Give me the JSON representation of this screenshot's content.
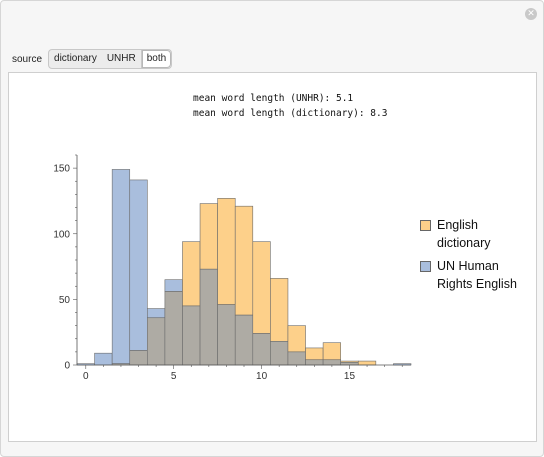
{
  "window": {
    "close_symbol": "✕"
  },
  "controls": {
    "label": "source",
    "options": [
      "dictionary",
      "UNHR",
      "both"
    ],
    "selected": "both"
  },
  "stats": {
    "line1": "mean word length (UNHR): 5.1",
    "line2": "mean word length (dictionary): 8.3"
  },
  "colors": {
    "dictionary": "#fdd08a",
    "unhr": "#a9bedd",
    "overlap": "#aeaba4"
  },
  "legend": {
    "dictionary": "English dictionary",
    "unhr": "UN Human Rights English"
  },
  "chart_data": {
    "type": "bar",
    "bin_width": 1,
    "bin_starts": [
      0,
      1,
      2,
      3,
      4,
      5,
      6,
      7,
      8,
      9,
      10,
      11,
      12,
      13,
      14,
      15,
      16,
      17,
      18
    ],
    "series": [
      {
        "name": "English dictionary",
        "values": [
          0,
          0,
          1,
          11,
          36,
          56,
          94,
          123,
          127,
          121,
          94,
          66,
          30,
          13,
          17,
          3,
          3,
          0,
          0
        ]
      },
      {
        "name": "UN Human Rights English",
        "values": [
          1,
          9,
          149,
          141,
          43,
          65,
          45,
          73,
          46,
          38,
          24,
          18,
          10,
          4,
          4,
          2,
          0,
          0,
          1
        ]
      }
    ],
    "xlim": [
      -0.5,
      18.5
    ],
    "ylim": [
      0,
      160
    ],
    "x_ticks": [
      0,
      5,
      10,
      15
    ],
    "y_ticks": [
      0,
      50,
      100,
      150
    ],
    "legend_position": "right"
  }
}
